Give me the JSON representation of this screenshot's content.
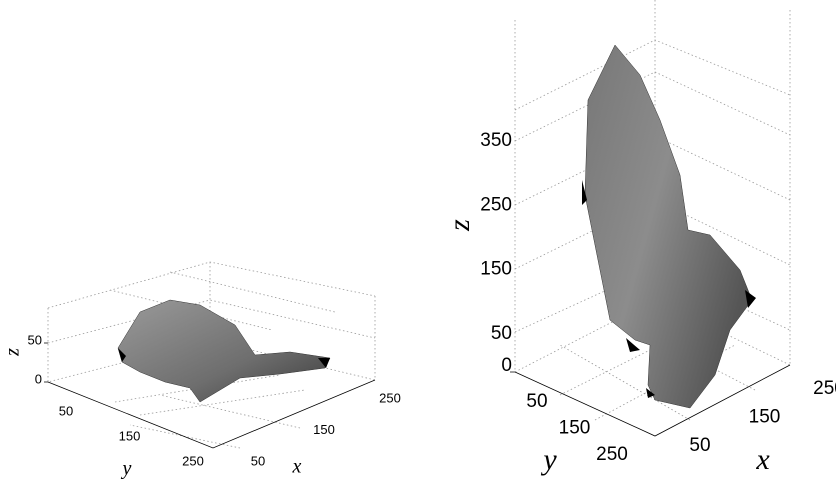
{
  "plots": [
    {
      "xticks": [
        50,
        150,
        250
      ],
      "yticks": [
        50,
        150,
        250
      ],
      "zticks": [
        0,
        50
      ],
      "xlabel": "x",
      "ylabel": "y",
      "zlabel": "z"
    },
    {
      "xticks": [
        50,
        150,
        250
      ],
      "yticks": [
        50,
        150,
        250
      ],
      "zticks": [
        0,
        50,
        150,
        250,
        350
      ],
      "xlabel": "x",
      "ylabel": "y",
      "zlabel": "z"
    }
  ]
}
